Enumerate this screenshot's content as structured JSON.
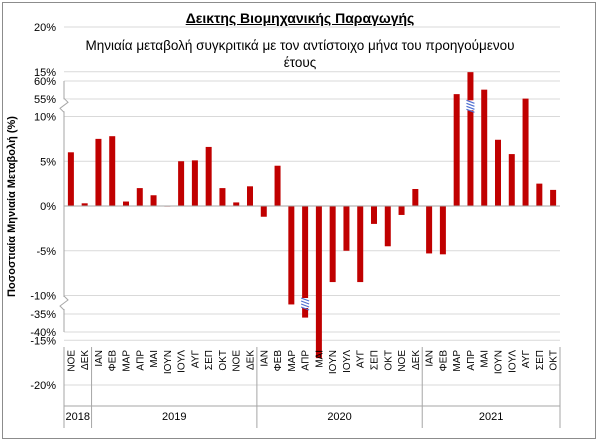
{
  "chart_data": {
    "type": "bar",
    "title": "Δεικτης Βιομηχανικής Παραγωγής",
    "subtitle": "Μηνιαία μεταβολή συγκριτικά με τον αντίστοιχο μήνα του προηγούμενου έτους",
    "ylabel": "Ποσοστιαία Μηνιαία Μεταβολή (%)",
    "xlabel": "",
    "axis_break": true,
    "yticks": [
      "60%",
      "55%",
      "25%",
      "20%",
      "15%",
      "10%",
      "5%",
      "0%",
      "-5%",
      "-10%",
      "-15%",
      "-20%",
      "-35%",
      "-40%"
    ],
    "years": [
      {
        "label": "2018",
        "months": 2
      },
      {
        "label": "2019",
        "months": 12
      },
      {
        "label": "2020",
        "months": 12
      },
      {
        "label": "2021",
        "months": 10
      }
    ],
    "categories": [
      "ΝΟΕ",
      "ΔΕΚ",
      "ΙΑΝ",
      "ΦΕΒ",
      "ΜΑΡ",
      "ΑΠΡ",
      "ΜΑΙ",
      "ΙΟΥΝ",
      "ΙΟΥΛ",
      "ΑΥΓ",
      "ΣΕΠ",
      "ΟΚΤ",
      "ΝΟΕ",
      "ΔΕΚ",
      "ΙΑΝ",
      "ΦΕΒ",
      "ΜΑΡ",
      "ΑΠΡ",
      "ΜΑΙ",
      "ΙΟΥΝ",
      "ΙΟΥΛ",
      "ΑΥΓ",
      "ΣΕΠ",
      "ΟΚΤ",
      "ΝΟΕ",
      "ΔΕΚ",
      "ΙΑΝ",
      "ΦΕΒ",
      "ΜΑΡ",
      "ΑΠΡ",
      "ΜΑΙ",
      "ΙΟΥΝ",
      "ΙΟΥΛ",
      "ΑΥΓ",
      "ΣΕΠ",
      "ΟΚΤ"
    ],
    "values": [
      6.0,
      0.3,
      7.5,
      7.8,
      0.5,
      2.0,
      1.2,
      0.0,
      5.0,
      5.1,
      6.6,
      2.0,
      0.4,
      2.2,
      -1.2,
      4.5,
      -11.0,
      -36.0,
      -17.0,
      -8.5,
      -5.0,
      -8.5,
      -2.0,
      -4.5,
      -1.0,
      1.9,
      -5.3,
      -5.4,
      12.5,
      58.0,
      13.0,
      7.4,
      5.8,
      12.0,
      2.5,
      1.8
    ],
    "colors": {
      "bar": "#c00000",
      "grid": "#d9d9d9",
      "axis": "#a6a6a6",
      "break": "#4f6fd1"
    }
  }
}
